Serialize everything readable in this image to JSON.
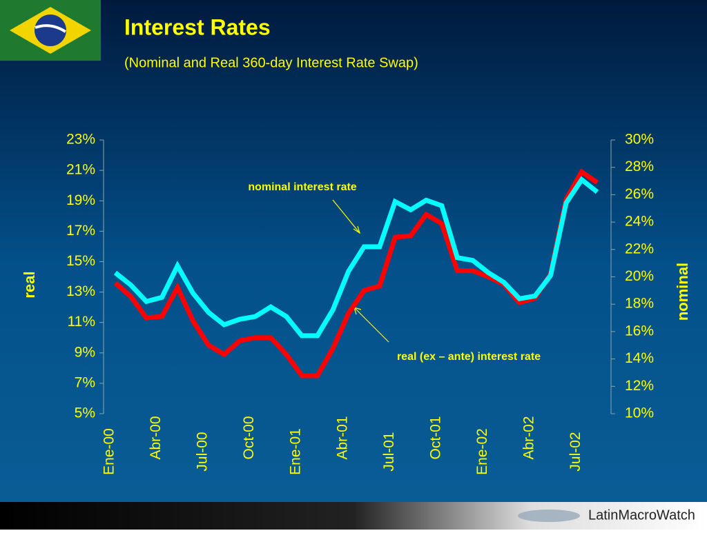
{
  "chart_data": {
    "type": "line",
    "title": "Interest Rates",
    "subtitle": "(Nominal and Real 360-day Interest Rate Swap)",
    "y_label": "real",
    "y2_label": "nominal",
    "annotations": [
      "nominal interest rate",
      "real (ex – ante) interest rate"
    ],
    "categories": [
      "Ene-00",
      null,
      null,
      "Abr-00",
      null,
      null,
      "Jul-00",
      null,
      null,
      "Oct-00",
      null,
      null,
      "Ene-01",
      null,
      null,
      "Abr-01",
      null,
      null,
      "Jul-01",
      null,
      null,
      "Oct-01",
      null,
      null,
      "Ene-02",
      null,
      null,
      "Abr-02",
      null,
      null,
      "Jul-02",
      null
    ],
    "series": [
      {
        "name": "real (ex – ante) interest rate",
        "color": "#ff0000",
        "axis": "y",
        "values": [
          13.6,
          12.7,
          11.3,
          11.4,
          13.3,
          11.1,
          9.5,
          8.9,
          9.8,
          10.0,
          10.0,
          8.9,
          7.5,
          7.5,
          9.3,
          11.6,
          13.1,
          13.4,
          16.6,
          16.7,
          18.1,
          17.5,
          14.4,
          14.4,
          14.0,
          13.5,
          12.3,
          12.6,
          14.2,
          19.1,
          20.9,
          20.2
        ]
      },
      {
        "name": "nominal interest rate",
        "color": "#00ffff",
        "axis": "y2",
        "values": [
          20.3,
          19.4,
          18.2,
          18.5,
          20.8,
          18.8,
          17.4,
          16.5,
          16.9,
          17.1,
          17.8,
          17.1,
          15.7,
          15.7,
          17.6,
          20.4,
          22.2,
          22.2,
          25.5,
          24.9,
          25.6,
          25.2,
          21.4,
          21.2,
          20.3,
          19.6,
          18.4,
          18.6,
          20.1,
          25.4,
          27.1,
          26.2
        ]
      }
    ],
    "ylim": [
      5,
      23
    ],
    "yticks": [
      {
        "value": 5,
        "label": "5%"
      },
      {
        "value": 7,
        "label": "7%"
      },
      {
        "value": 9,
        "label": "9%"
      },
      {
        "value": 11,
        "label": "11%"
      },
      {
        "value": 13,
        "label": "13%"
      },
      {
        "value": 15,
        "label": "15%"
      },
      {
        "value": 17,
        "label": "17%"
      },
      {
        "value": 19,
        "label": "19%"
      },
      {
        "value": 21,
        "label": "21%"
      },
      {
        "value": 23,
        "label": "23%"
      }
    ],
    "y2lim": [
      10,
      30
    ],
    "y2ticks": [
      {
        "value": 10,
        "label": "10%"
      },
      {
        "value": 12,
        "label": "12%"
      },
      {
        "value": 14,
        "label": "14%"
      },
      {
        "value": 16,
        "label": "16%"
      },
      {
        "value": 18,
        "label": "18%"
      },
      {
        "value": 20,
        "label": "20%"
      },
      {
        "value": 22,
        "label": "22%"
      },
      {
        "value": 24,
        "label": "24%"
      },
      {
        "value": 26,
        "label": "26%"
      },
      {
        "value": 28,
        "label": "28%"
      },
      {
        "value": 30,
        "label": "30%"
      }
    ],
    "legend": false
  },
  "footer": {
    "logo": "LatinMacroWatch"
  }
}
